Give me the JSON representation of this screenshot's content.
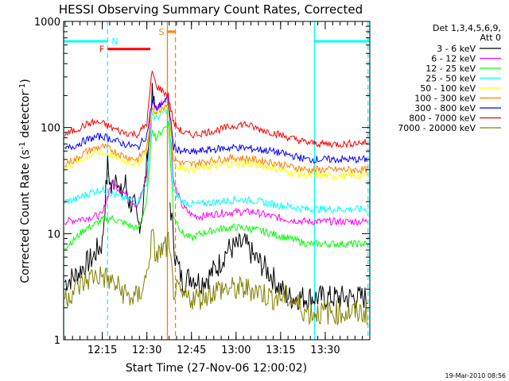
{
  "chart_data": {
    "type": "line",
    "title": "HESSI Observing Summary Count Rates, Corrected",
    "xlabel": "Start Time (27-Nov-06 12:00:02)",
    "ylabel": "Corrected Count Rate (s",
    "ylabel_sup1": "-1",
    "ylabel_mid": " detector",
    "ylabel_sup2": "-1",
    "ylabel_end": ")",
    "y_scale": "log",
    "ylim": [
      1,
      1000
    ],
    "xlim": [
      12.0333,
      13.75
    ],
    "yticks": [
      {
        "value": 1,
        "label": "1"
      },
      {
        "value": 10,
        "label": "10"
      },
      {
        "value": 100,
        "label": "100"
      },
      {
        "value": 1000,
        "label": "1000"
      }
    ],
    "xticks": [
      {
        "value": 12.25,
        "label": "12:15"
      },
      {
        "value": 12.5,
        "label": "12:30"
      },
      {
        "value": 12.75,
        "label": "12:45"
      },
      {
        "value": 13.0,
        "label": "13:00"
      },
      {
        "value": 13.25,
        "label": "13:15"
      },
      {
        "value": 13.5,
        "label": "13:30"
      }
    ],
    "grid": false,
    "legend": {
      "placement": "right",
      "header": [
        "Det 1,3,4,5,6,9,",
        "Att 0"
      ]
    },
    "series": [
      {
        "name": "3 - 6 keV",
        "color": "#000000",
        "x": [
          12.04,
          12.1,
          12.15,
          12.2,
          12.22,
          12.25,
          12.28,
          12.3,
          12.33,
          12.35,
          12.38,
          12.4,
          12.43,
          12.45,
          12.47,
          12.49,
          12.51,
          12.53,
          12.55,
          12.57,
          12.59,
          12.615,
          12.63,
          12.66,
          12.7,
          12.75,
          12.8,
          12.85,
          12.9,
          12.95,
          13.0,
          13.05,
          13.1,
          13.15,
          13.2,
          13.25,
          13.3,
          13.4,
          13.5,
          13.6,
          13.7,
          13.74
        ],
        "y": [
          3.5,
          4.0,
          5.0,
          6.0,
          7.0,
          8.0,
          45.0,
          25.0,
          40.0,
          22.0,
          30.0,
          20.0,
          18.0,
          12.0,
          14.0,
          30.0,
          80.0,
          200.0,
          130.0,
          null,
          null,
          null,
          20.0,
          6.0,
          3.5,
          4.0,
          3.5,
          4.0,
          5.0,
          7.0,
          7.5,
          8.0,
          6.0,
          5.0,
          4.0,
          3.0,
          2.5,
          2.5,
          2.5,
          2.5,
          2.5,
          2.5
        ]
      },
      {
        "name": "6 - 12 keV",
        "color": "#ff00ff",
        "x": [
          12.04,
          12.1,
          12.15,
          12.2,
          12.25,
          12.3,
          12.35,
          12.4,
          12.45,
          12.5,
          12.53,
          12.55,
          12.62,
          12.65,
          12.7,
          12.75,
          12.8,
          12.9,
          13.0,
          13.1,
          13.2,
          13.3,
          13.4,
          13.5,
          13.6,
          13.7,
          13.74
        ],
        "y": [
          13.0,
          13.5,
          14.0,
          14.5,
          15.0,
          30.0,
          26.0,
          22.0,
          18.0,
          35.0,
          180.0,
          150.0,
          200.0,
          30.0,
          18.0,
          15.0,
          14.5,
          15.5,
          16.0,
          16.0,
          14.5,
          13.5,
          13.0,
          13.0,
          13.0,
          13.0,
          13.0
        ]
      },
      {
        "name": "12 - 25 keV",
        "color": "#00ff00",
        "x": [
          12.04,
          12.1,
          12.15,
          12.2,
          12.25,
          12.3,
          12.35,
          12.4,
          12.45,
          12.5,
          12.53,
          12.55,
          12.62,
          12.65,
          12.7,
          12.75,
          12.8,
          12.9,
          13.0,
          13.1,
          13.2,
          13.3,
          13.4,
          13.5,
          13.6,
          13.7,
          13.74
        ],
        "y": [
          7.5,
          9.0,
          11.0,
          12.0,
          13.5,
          14.0,
          13.0,
          12.0,
          11.0,
          20.0,
          100.0,
          80.0,
          110.0,
          15.0,
          10.0,
          9.0,
          10.0,
          11.0,
          11.5,
          11.0,
          10.0,
          9.0,
          8.0,
          8.0,
          8.0,
          8.0,
          8.0
        ]
      },
      {
        "name": "25 - 50 keV",
        "color": "#00ffff",
        "x": [
          12.04,
          12.1,
          12.15,
          12.2,
          12.25,
          12.3,
          12.35,
          12.4,
          12.45,
          12.5,
          12.53,
          12.55,
          12.62,
          12.65,
          12.7,
          12.75,
          12.8,
          12.9,
          13.0,
          13.1,
          13.2,
          13.3,
          13.4,
          13.5,
          13.6,
          13.7,
          13.74
        ],
        "y": [
          20.0,
          21.0,
          23.0,
          25.0,
          26.0,
          24.0,
          22.0,
          21.0,
          20.0,
          30.0,
          140.0,
          120.0,
          150.0,
          25.0,
          20.0,
          19.0,
          19.0,
          20.0,
          21.0,
          20.5,
          19.0,
          18.0,
          17.0,
          17.0,
          17.0,
          17.0,
          17.0
        ]
      },
      {
        "name": "50 - 100 keV",
        "color": "#ffff00",
        "x": [
          12.04,
          12.1,
          12.15,
          12.2,
          12.25,
          12.3,
          12.35,
          12.4,
          12.45,
          12.5,
          12.53,
          12.55,
          12.62,
          12.65,
          12.7,
          12.75,
          12.8,
          12.9,
          13.0,
          13.1,
          13.2,
          13.3,
          13.4,
          13.5,
          13.6,
          13.7,
          13.74
        ],
        "y": [
          42.0,
          46.0,
          52.0,
          56.0,
          58.0,
          55.0,
          50.0,
          47.0,
          45.0,
          60.0,
          150.0,
          130.0,
          160.0,
          45.0,
          42.0,
          40.0,
          42.0,
          44.0,
          46.0,
          45.0,
          42.0,
          38.0,
          35.0,
          35.0,
          35.0,
          35.0,
          35.0
        ]
      },
      {
        "name": "100 - 300 keV",
        "color": "#ff7f00",
        "x": [
          12.04,
          12.1,
          12.15,
          12.2,
          12.25,
          12.3,
          12.35,
          12.4,
          12.45,
          12.5,
          12.53,
          12.55,
          12.62,
          12.65,
          12.7,
          12.75,
          12.8,
          12.9,
          13.0,
          13.1,
          13.2,
          13.3,
          13.4,
          13.5,
          13.6,
          13.7,
          13.74
        ],
        "y": [
          46.0,
          50.0,
          58.0,
          63.0,
          66.0,
          62.0,
          56.0,
          52.0,
          50.0,
          65.0,
          160.0,
          140.0,
          170.0,
          50.0,
          46.0,
          45.0,
          47.0,
          50.0,
          52.0,
          50.0,
          47.0,
          43.0,
          40.0,
          40.0,
          40.0,
          40.0,
          40.0
        ]
      },
      {
        "name": "300 - 800 keV",
        "color": "#0000ff",
        "x": [
          12.04,
          12.1,
          12.15,
          12.2,
          12.25,
          12.3,
          12.35,
          12.4,
          12.45,
          12.5,
          12.53,
          12.55,
          12.62,
          12.65,
          12.7,
          12.75,
          12.8,
          12.9,
          13.0,
          13.1,
          13.2,
          13.3,
          13.4,
          13.5,
          13.6,
          13.7,
          13.74
        ],
        "y": [
          62.0,
          68.0,
          75.0,
          80.0,
          83.0,
          78.0,
          72.0,
          68.0,
          65.0,
          85.0,
          180.0,
          150.0,
          190.0,
          65.0,
          60.0,
          58.0,
          60.0,
          63.0,
          65.0,
          63.0,
          60.0,
          55.0,
          50.0,
          50.0,
          50.0,
          50.0,
          50.0
        ]
      },
      {
        "name": "800 - 7000 keV",
        "color": "#ff0000",
        "x": [
          12.04,
          12.1,
          12.15,
          12.2,
          12.25,
          12.3,
          12.35,
          12.4,
          12.45,
          12.5,
          12.53,
          12.55,
          12.62,
          12.65,
          12.7,
          12.75,
          12.8,
          12.9,
          13.0,
          13.05,
          13.1,
          13.2,
          13.3,
          13.4,
          13.5,
          13.6,
          13.7,
          13.74
        ],
        "y": [
          85.0,
          95.0,
          105.0,
          112.0,
          110.0,
          100.0,
          92.0,
          88.0,
          86.0,
          110.0,
          350.0,
          250.0,
          200.0,
          110.0,
          90.0,
          85.0,
          88.0,
          95.0,
          105.0,
          108.0,
          100.0,
          90.0,
          80.0,
          72.0,
          70.0,
          70.0,
          72.0,
          72.0
        ]
      },
      {
        "name": "7000 - 20000 keV",
        "color": "#808000",
        "x": [
          12.04,
          12.1,
          12.15,
          12.2,
          12.25,
          12.3,
          12.35,
          12.4,
          12.45,
          12.5,
          12.53,
          12.55,
          12.62,
          12.65,
          12.7,
          12.75,
          12.8,
          12.9,
          13.0,
          13.1,
          13.2,
          13.3,
          13.4,
          13.5,
          13.6,
          13.7,
          13.74
        ],
        "y": [
          2.5,
          3.0,
          3.5,
          4.0,
          4.0,
          3.5,
          3.0,
          2.5,
          2.5,
          4.0,
          10.0,
          6.0,
          8.0,
          3.0,
          2.5,
          2.5,
          2.5,
          3.0,
          3.0,
          3.0,
          2.5,
          2.5,
          1.8,
          1.8,
          1.8,
          1.8,
          1.8
        ]
      }
    ],
    "annotations": [
      {
        "label": "N",
        "color": "#00ffff",
        "type": "night_bars",
        "ranges": [
          [
            12.0333,
            12.28
          ],
          [
            13.44,
            13.75
          ]
        ],
        "y": 650
      },
      {
        "label": "F",
        "color": "#ff0000",
        "type": "bar",
        "range": [
          12.28,
          12.52
        ],
        "y": 550
      },
      {
        "label": "S",
        "color": "#ff7f00",
        "type": "bar",
        "range": [
          12.615,
          12.66
        ],
        "y": 800
      }
    ],
    "vertical_lines": [
      {
        "x": 12.0333,
        "color": "#00ffff",
        "style": "solid"
      },
      {
        "x": 12.28,
        "color": "#00ffff",
        "style": "dashed"
      },
      {
        "x": 12.615,
        "color": "#ff7f00",
        "style": "solid"
      },
      {
        "x": 12.66,
        "color": "#ff7f00",
        "style": "dashed"
      },
      {
        "x": 13.44,
        "color": "#00ffff",
        "style": "solid"
      },
      {
        "x": 13.74,
        "color": "#00ffff",
        "style": "dashed"
      }
    ]
  },
  "footer": {
    "timestamp": "19-Mar-2010 08:56"
  }
}
